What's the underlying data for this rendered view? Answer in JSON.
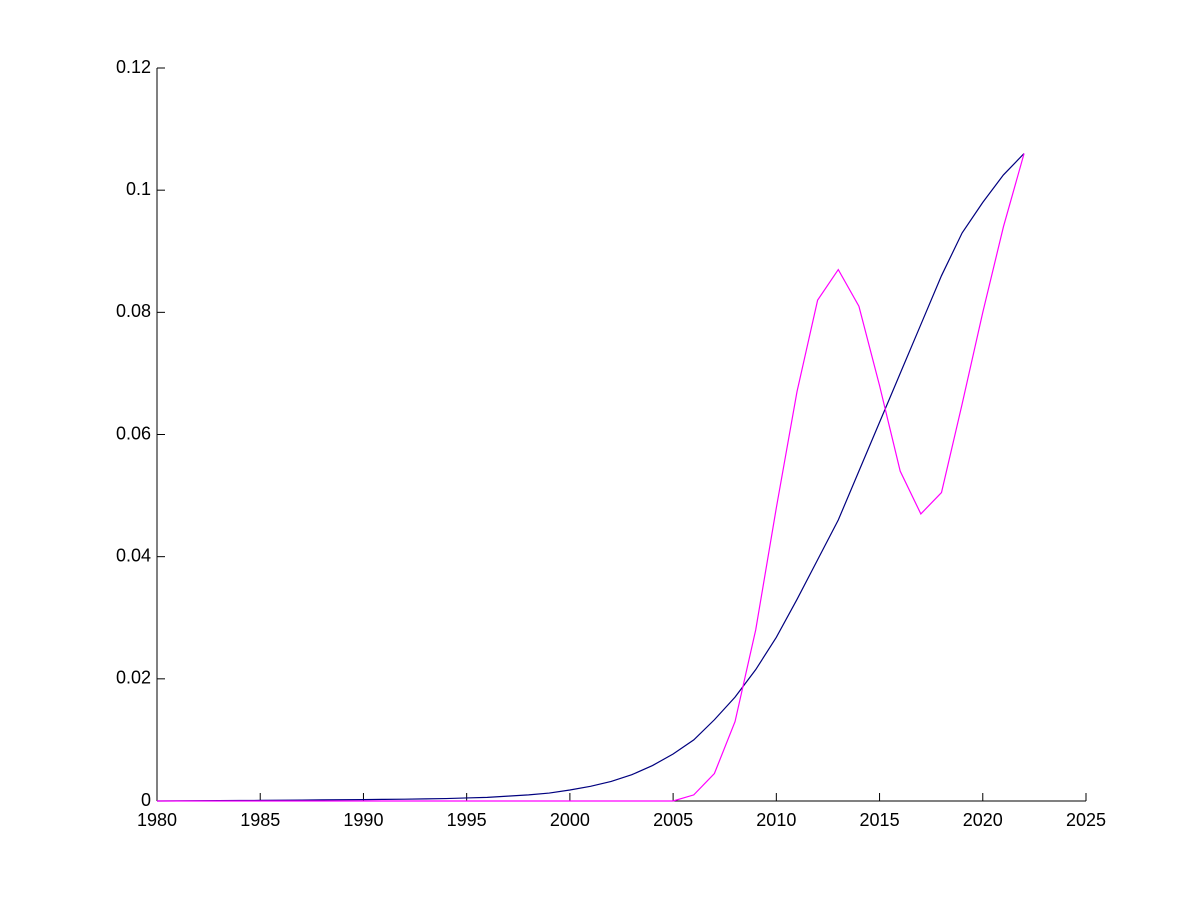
{
  "chart_data": {
    "type": "line",
    "x": [
      1980,
      1981,
      1982,
      1983,
      1984,
      1985,
      1986,
      1987,
      1988,
      1989,
      1990,
      1991,
      1992,
      1993,
      1994,
      1995,
      1996,
      1997,
      1998,
      1999,
      2000,
      2001,
      2002,
      2003,
      2004,
      2005,
      2006,
      2007,
      2008,
      2009,
      2010,
      2011,
      2012,
      2013,
      2014,
      2015,
      2016,
      2017,
      2018,
      2019,
      2020,
      2021,
      2022
    ],
    "series": [
      {
        "color": "#00007f",
        "values": [
          0,
          2e-05,
          4e-05,
          6e-05,
          8e-05,
          0.0001,
          0.00012,
          0.00015,
          0.00018,
          0.0002,
          0.00023,
          0.00027,
          0.0003,
          0.00035,
          0.0004,
          0.0005,
          0.0006,
          0.0008,
          0.001,
          0.0013,
          0.0018,
          0.0024,
          0.0032,
          0.0043,
          0.0058,
          0.0077,
          0.01,
          0.0133,
          0.017,
          0.0215,
          0.0268,
          0.033,
          0.0395,
          0.046,
          0.054,
          0.062,
          0.07,
          0.078,
          0.086,
          0.093,
          0.098,
          0.1025,
          0.106
        ]
      },
      {
        "color": "#ff00ff",
        "values": [
          0,
          0,
          0,
          0,
          0,
          0,
          0,
          0,
          0,
          0,
          0,
          0,
          0,
          0,
          0,
          0,
          0,
          0,
          0,
          0,
          0,
          0,
          0,
          0,
          0,
          0,
          0.001,
          0.0045,
          0.013,
          0.028,
          0.048,
          0.067,
          0.082,
          0.087,
          0.081,
          0.068,
          0.054,
          0.047,
          0.0505,
          0.065,
          0.08,
          0.094,
          0.106
        ]
      }
    ],
    "xlim": [
      1980,
      2025
    ],
    "xticks": [
      1980,
      1985,
      1990,
      1995,
      2000,
      2005,
      2010,
      2015,
      2020,
      2025
    ],
    "ylim": [
      0,
      0.12
    ],
    "yticks": [
      0,
      0.02,
      0.04,
      0.06,
      0.08,
      0.1,
      0.12
    ]
  }
}
